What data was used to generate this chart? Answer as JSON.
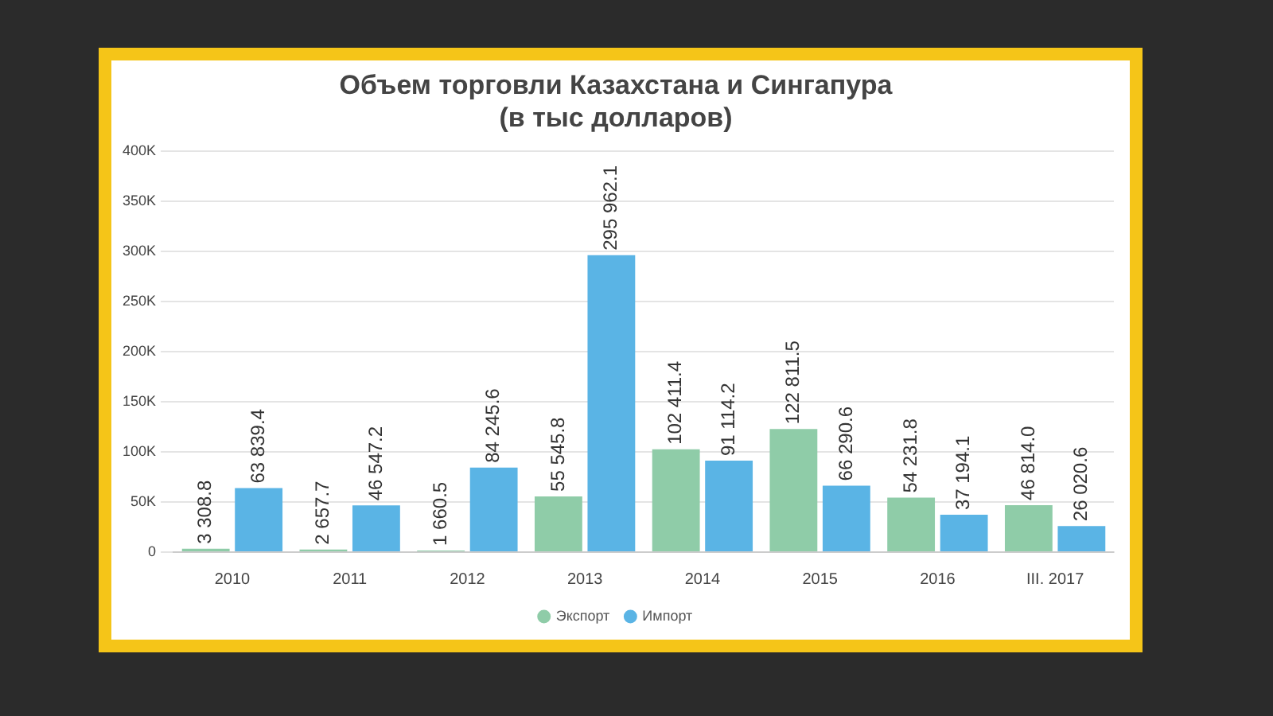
{
  "chart_data": {
    "type": "bar",
    "title": "Объем торговли Казахстана и Сингапура\n(в тыс долларов)",
    "categories": [
      "2010",
      "2011",
      "2012",
      "2013",
      "2014",
      "2015",
      "2016",
      "III. 2017"
    ],
    "series": [
      {
        "name": "Экспорт",
        "color": "#8fcca8",
        "values": [
          3308.8,
          2657.7,
          1660.5,
          55545.8,
          102411.4,
          122811.5,
          54231.8,
          46814.0
        ],
        "value_labels": [
          "3 308.8",
          "2 657.7",
          "1 660.5",
          "55 545.8",
          "102 411.4",
          "122 811.5",
          "54 231.8",
          "46 814.0"
        ]
      },
      {
        "name": "Импорт",
        "color": "#5ab4e5",
        "values": [
          63839.4,
          46547.2,
          84245.6,
          295962.1,
          91114.2,
          66290.6,
          37194.1,
          26020.6
        ],
        "value_labels": [
          "63 839.4",
          "46 547.2",
          "84 245.6",
          "295 962.1",
          "91 114.2",
          "66 290.6",
          "37 194.1",
          "26 020.6"
        ]
      }
    ],
    "ylim": [
      0,
      400000
    ],
    "yticks": [
      {
        "value": 0,
        "label": "0"
      },
      {
        "value": 50000,
        "label": "50K"
      },
      {
        "value": 100000,
        "label": "100K"
      },
      {
        "value": 150000,
        "label": "150K"
      },
      {
        "value": 200000,
        "label": "200K"
      },
      {
        "value": 250000,
        "label": "250K"
      },
      {
        "value": 300000,
        "label": "300K"
      },
      {
        "value": 350000,
        "label": "350K"
      },
      {
        "value": 400000,
        "label": "400K"
      }
    ],
    "grid": "y",
    "legend": "bottom"
  }
}
